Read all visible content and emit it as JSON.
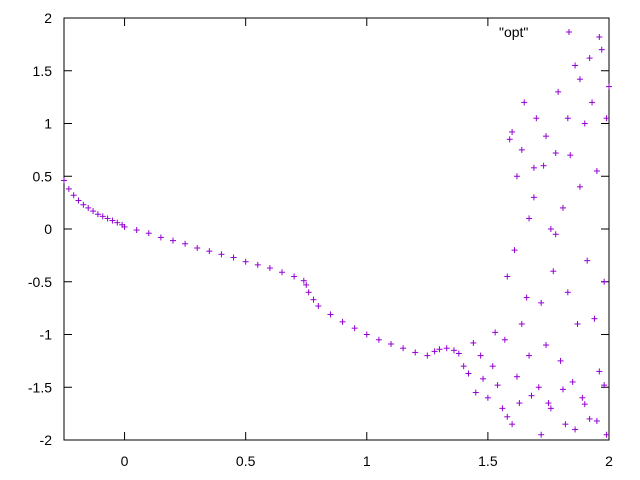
{
  "chart_data": {
    "type": "scatter",
    "title": "",
    "xlabel": "",
    "ylabel": "",
    "xlim": [
      -0.25,
      2
    ],
    "ylim": [
      -2,
      2
    ],
    "xticks": [
      {
        "value": 0,
        "label": "0"
      },
      {
        "value": 0.5,
        "label": "0.5"
      },
      {
        "value": 1,
        "label": "1"
      },
      {
        "value": 1.5,
        "label": "1.5"
      },
      {
        "value": 2,
        "label": "2"
      }
    ],
    "yticks": [
      {
        "value": -2,
        "label": "-2"
      },
      {
        "value": -1.5,
        "label": "-1.5"
      },
      {
        "value": -1,
        "label": "-1"
      },
      {
        "value": -0.5,
        "label": "-0.5"
      },
      {
        "value": 0,
        "label": "0"
      },
      {
        "value": 0.5,
        "label": "0.5"
      },
      {
        "value": 1,
        "label": "1"
      },
      {
        "value": 1.5,
        "label": "1.5"
      },
      {
        "value": 2,
        "label": "2"
      }
    ],
    "legend": {
      "position": "top-right",
      "entries": [
        {
          "label": "\"opt\"",
          "color": "#9400d3",
          "marker": "plus"
        }
      ]
    },
    "series": [
      {
        "name": "\"opt\"",
        "color": "#9400d3",
        "marker": "plus",
        "points": [
          [
            -0.25,
            0.46
          ],
          [
            -0.23,
            0.38
          ],
          [
            -0.21,
            0.32
          ],
          [
            -0.19,
            0.27
          ],
          [
            -0.17,
            0.23
          ],
          [
            -0.15,
            0.2
          ],
          [
            -0.13,
            0.17
          ],
          [
            -0.11,
            0.14
          ],
          [
            -0.09,
            0.12
          ],
          [
            -0.07,
            0.1
          ],
          [
            -0.05,
            0.08
          ],
          [
            -0.03,
            0.06
          ],
          [
            -0.01,
            0.04
          ],
          [
            0.0,
            0.02
          ],
          [
            0.05,
            -0.01
          ],
          [
            0.1,
            -0.04
          ],
          [
            0.15,
            -0.08
          ],
          [
            0.2,
            -0.11
          ],
          [
            0.25,
            -0.14
          ],
          [
            0.3,
            -0.18
          ],
          [
            0.35,
            -0.21
          ],
          [
            0.4,
            -0.24
          ],
          [
            0.45,
            -0.27
          ],
          [
            0.5,
            -0.31
          ],
          [
            0.55,
            -0.34
          ],
          [
            0.6,
            -0.37
          ],
          [
            0.65,
            -0.41
          ],
          [
            0.7,
            -0.45
          ],
          [
            0.74,
            -0.49
          ],
          [
            0.75,
            -0.53
          ],
          [
            0.76,
            -0.6
          ],
          [
            0.78,
            -0.67
          ],
          [
            0.8,
            -0.73
          ],
          [
            0.85,
            -0.81
          ],
          [
            0.9,
            -0.88
          ],
          [
            0.95,
            -0.94
          ],
          [
            1.0,
            -1.0
          ],
          [
            1.05,
            -1.05
          ],
          [
            1.1,
            -1.09
          ],
          [
            1.15,
            -1.13
          ],
          [
            1.2,
            -1.17
          ],
          [
            1.25,
            -1.2
          ],
          [
            1.28,
            -1.16
          ],
          [
            1.3,
            -1.14
          ],
          [
            1.33,
            -1.13
          ],
          [
            1.36,
            -1.15
          ],
          [
            1.38,
            -1.18
          ],
          [
            1.4,
            -1.3
          ],
          [
            1.42,
            -1.37
          ],
          [
            1.44,
            -1.08
          ],
          [
            1.45,
            -1.55
          ],
          [
            1.47,
            -1.2
          ],
          [
            1.48,
            -1.42
          ],
          [
            1.5,
            -1.6
          ],
          [
            1.52,
            -1.3
          ],
          [
            1.53,
            -0.98
          ],
          [
            1.54,
            -1.48
          ],
          [
            1.56,
            -1.7
          ],
          [
            1.57,
            -1.05
          ],
          [
            1.58,
            -0.45
          ],
          [
            1.59,
            0.85
          ],
          [
            1.6,
            -1.85
          ],
          [
            1.61,
            -0.2
          ],
          [
            1.62,
            0.5
          ],
          [
            1.63,
            -1.65
          ],
          [
            1.64,
            -0.9
          ],
          [
            1.65,
            1.2
          ],
          [
            1.66,
            -0.65
          ],
          [
            1.67,
            0.1
          ],
          [
            1.68,
            -1.58
          ],
          [
            1.69,
            0.3
          ],
          [
            1.7,
            1.05
          ],
          [
            1.71,
            -1.5
          ],
          [
            1.72,
            -0.7
          ],
          [
            1.73,
            0.6
          ],
          [
            1.74,
            -1.1
          ],
          [
            1.75,
            -1.65
          ],
          [
            1.76,
            0.0
          ],
          [
            1.77,
            -0.4
          ],
          [
            1.78,
            -0.05
          ],
          [
            1.79,
            1.3
          ],
          [
            1.8,
            -1.25
          ],
          [
            1.81,
            0.2
          ],
          [
            1.82,
            -1.85
          ],
          [
            1.83,
            -0.6
          ],
          [
            1.84,
            0.7
          ],
          [
            1.85,
            -1.45
          ],
          [
            1.86,
            1.55
          ],
          [
            1.87,
            -0.9
          ],
          [
            1.88,
            0.4
          ],
          [
            1.89,
            -1.6
          ],
          [
            1.9,
            1.0
          ],
          [
            1.91,
            -0.3
          ],
          [
            1.92,
            -1.8
          ],
          [
            1.93,
            1.2
          ],
          [
            1.94,
            -0.85
          ],
          [
            1.95,
            0.55
          ],
          [
            1.96,
            -1.35
          ],
          [
            1.97,
            1.7
          ],
          [
            1.98,
            -0.5
          ],
          [
            1.99,
            -1.95
          ],
          [
            2.0,
            1.35
          ],
          [
            1.58,
            -1.78
          ],
          [
            1.62,
            -1.4
          ],
          [
            1.67,
            -1.2
          ],
          [
            1.72,
            -1.95
          ],
          [
            1.76,
            -1.7
          ],
          [
            1.81,
            -1.52
          ],
          [
            1.86,
            -1.9
          ],
          [
            1.9,
            -1.66
          ],
          [
            1.95,
            -1.82
          ],
          [
            1.98,
            -1.48
          ],
          [
            1.6,
            0.92
          ],
          [
            1.64,
            0.75
          ],
          [
            1.69,
            0.58
          ],
          [
            1.74,
            0.88
          ],
          [
            1.78,
            0.72
          ],
          [
            1.83,
            1.05
          ],
          [
            1.88,
            1.42
          ],
          [
            1.92,
            1.62
          ],
          [
            1.96,
            1.82
          ],
          [
            1.99,
            1.05
          ]
        ]
      }
    ]
  }
}
